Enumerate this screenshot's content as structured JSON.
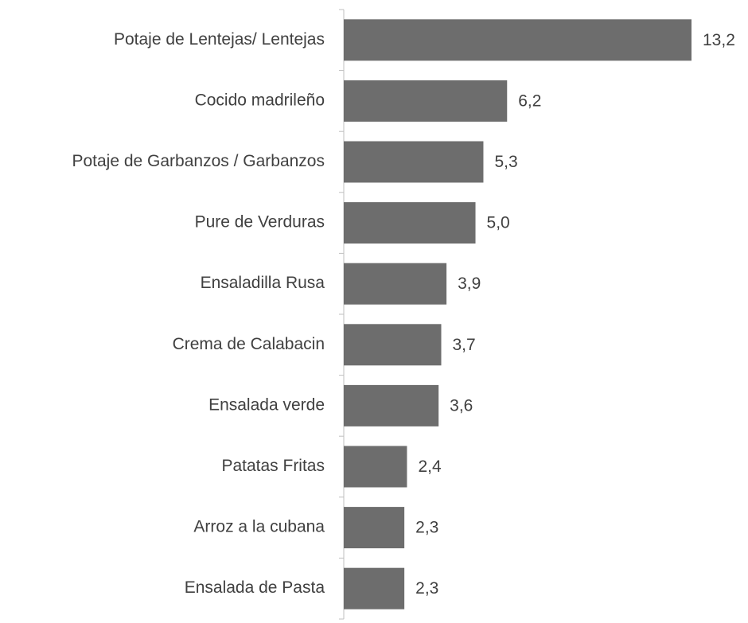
{
  "chart_data": {
    "type": "bar",
    "orientation": "horizontal",
    "categories": [
      "Potaje de Lentejas/ Lentejas",
      "Cocido madrileño",
      "Potaje de Garbanzos / Garbanzos",
      "Pure de Verduras",
      "Ensaladilla Rusa",
      "Crema de Calabacin",
      "Ensalada verde",
      "Patatas Fritas",
      "Arroz a la cubana",
      "Ensalada de Pasta"
    ],
    "values": [
      13.2,
      6.2,
      5.3,
      5.0,
      3.9,
      3.7,
      3.6,
      2.4,
      2.3,
      2.3
    ],
    "value_labels": [
      "13,2",
      "6,2",
      "5,3",
      "5,0",
      "3,9",
      "3,7",
      "3,6",
      "2,4",
      "2,3",
      "2,3"
    ],
    "color": "#6d6d6d"
  }
}
